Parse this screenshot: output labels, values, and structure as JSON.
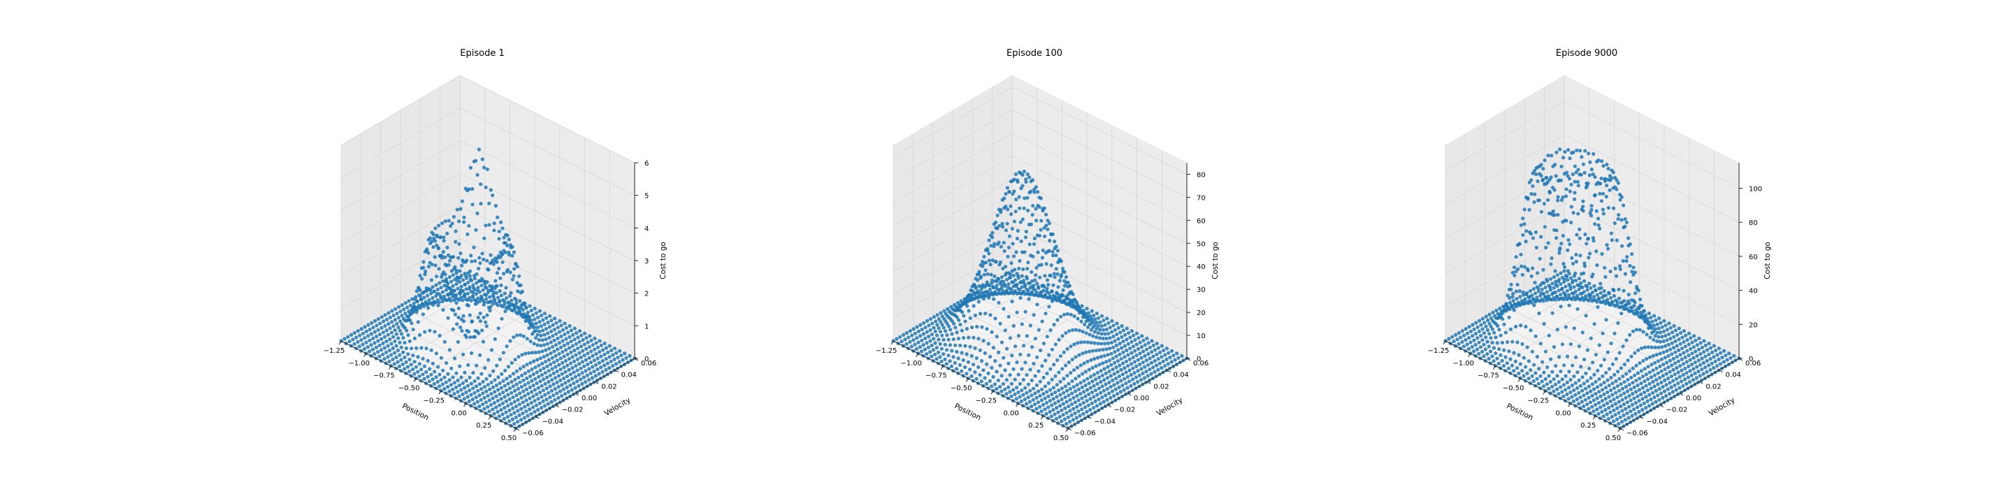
{
  "chart_data": [
    {
      "type": "scatter3d",
      "title": "Episode 1",
      "xlabel": "Position",
      "ylabel": "Velocity",
      "zlabel": "Cost to go",
      "xlim": [
        -1.2,
        0.5
      ],
      "ylim": [
        -0.07,
        0.07
      ],
      "zlim": [
        0,
        6
      ],
      "xticks": [
        "−1.25",
        "−1.00",
        "−0.75",
        "−0.50",
        "−0.25",
        "0.00",
        "0.25",
        "0.50"
      ],
      "yticks": [
        "−0.06",
        "−0.04",
        "−0.02",
        "0.00",
        "0.02",
        "0.04",
        "0.06"
      ],
      "zticks": [
        "0",
        "1",
        "2",
        "3",
        "4",
        "5",
        "6"
      ],
      "zticks_values": [
        0,
        1,
        2,
        3,
        4,
        5,
        6
      ],
      "grid_size": [
        36,
        36
      ],
      "surface": {
        "shape": "ring",
        "peak": 5.0,
        "center": [
          -0.55,
          0.0
        ]
      },
      "color": "#1f77b4",
      "grid": true
    },
    {
      "type": "scatter3d",
      "title": "Episode 100",
      "xlabel": "Position",
      "ylabel": "Velocity",
      "zlabel": "Cost to go",
      "xlim": [
        -1.2,
        0.5
      ],
      "ylim": [
        -0.07,
        0.07
      ],
      "zlim": [
        0,
        85
      ],
      "xticks": [
        "−1.25",
        "−1.00",
        "−0.75",
        "−0.50",
        "−0.25",
        "0.00",
        "0.25",
        "0.50"
      ],
      "yticks": [
        "−0.06",
        "−0.04",
        "−0.02",
        "0.00",
        "0.02",
        "0.04",
        "0.06"
      ],
      "zticks": [
        "0",
        "10",
        "20",
        "30",
        "40",
        "50",
        "60",
        "70",
        "80"
      ],
      "zticks_values": [
        0,
        10,
        20,
        30,
        40,
        50,
        60,
        70,
        80
      ],
      "grid_size": [
        36,
        36
      ],
      "surface": {
        "shape": "dome",
        "peak": 75,
        "center": [
          -0.5,
          0.0
        ]
      },
      "color": "#1f77b4",
      "grid": true
    },
    {
      "type": "scatter3d",
      "title": "Episode 9000",
      "xlabel": "Position",
      "ylabel": "Velocity",
      "zlabel": "Cost to go",
      "xlim": [
        -1.2,
        0.5
      ],
      "ylim": [
        -0.07,
        0.07
      ],
      "zlim": [
        0,
        115
      ],
      "xticks": [
        "−1.25",
        "−1.00",
        "−0.75",
        "−0.50",
        "−0.25",
        "0.00",
        "0.25",
        "0.50"
      ],
      "yticks": [
        "−0.06",
        "−0.04",
        "−0.02",
        "0.00",
        "0.02",
        "0.04",
        "0.06"
      ],
      "zticks": [
        "0",
        "20",
        "40",
        "60",
        "80",
        "100"
      ],
      "zticks_values": [
        0,
        20,
        40,
        60,
        80,
        100
      ],
      "grid_size": [
        36,
        36
      ],
      "surface": {
        "shape": "spiral",
        "peak": 105,
        "center": [
          -0.5,
          0.0
        ]
      },
      "color": "#1f77b4",
      "grid": true
    }
  ]
}
